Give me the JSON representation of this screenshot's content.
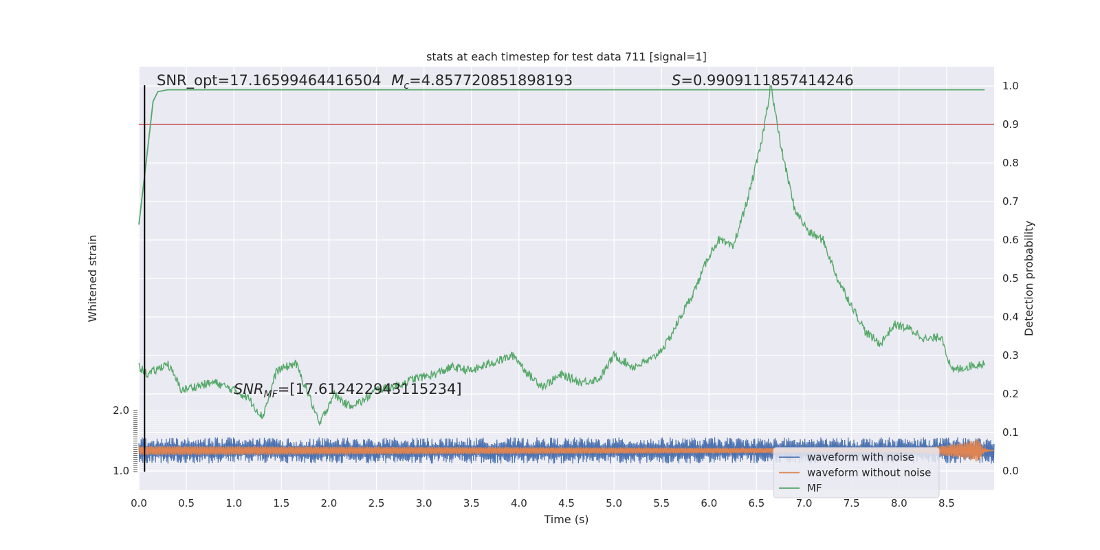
{
  "colors": {
    "background": "#eaeaf2",
    "grid": "#ffffff",
    "waveform_with_noise": "#4c72b0",
    "waveform_without_noise": "#dd8452",
    "mf": "#55a868",
    "threshold_line": "#c44e52",
    "marker_line": "#000000"
  },
  "chart_data": {
    "type": "line",
    "title": "stats at each timestep for test data 711 [signal=1]",
    "xlabel": "Time (s)",
    "ylabel_left": "Whitened strain",
    "ylabel_right": "Detection probability",
    "xlim": [
      0.0,
      9.0
    ],
    "ylim_right": [
      -0.05,
      1.05
    ],
    "x_ticks": [
      "0.0",
      "0.5",
      "1.0",
      "1.5",
      "2.0",
      "2.5",
      "3.0",
      "3.5",
      "4.0",
      "4.5",
      "5.0",
      "5.5",
      "6.0",
      "6.5",
      "7.0",
      "7.5",
      "8.0",
      "8.5"
    ],
    "y_ticks_right": [
      "0.0",
      "0.1",
      "0.2",
      "0.3",
      "0.4",
      "0.5",
      "0.6",
      "0.7",
      "0.8",
      "0.9",
      "1.0"
    ],
    "strain_ticks_top": "2.0",
    "strain_ticks_bottom": "1.0",
    "threshold": 0.9,
    "marker_time": 0.06,
    "grid": true,
    "legend_position": "lower-right",
    "annotations": {
      "snr_opt": "SNR_opt=17.16599464416504",
      "mc_label": "M",
      "mc_sub": "c",
      "mc_value": "=4.857720851898193",
      "s_label": "S",
      "s_value": "=0.9909111857414246",
      "snr_mf_label": "SNR",
      "snr_mf_sub": "MF",
      "snr_mf_value": "=[17.612422943115234]"
    },
    "series": [
      {
        "name": "waveform with noise",
        "type": "noise-band",
        "center": 0.053,
        "amplitude": 0.034
      },
      {
        "name": "waveform without noise",
        "type": "chirp",
        "center": 0.053,
        "amplitude_start": 0.012,
        "amplitude_end": 0.026,
        "merger_time": 8.85
      },
      {
        "name": "Detection probability",
        "color": "#55a868",
        "x": [
          0.0,
          0.08,
          0.15,
          0.2,
          0.3,
          0.5,
          1.0,
          2.0,
          4.0,
          6.0,
          8.0,
          8.9
        ],
        "y": [
          0.64,
          0.81,
          0.96,
          0.985,
          0.99,
          0.99,
          0.99,
          0.99,
          0.99,
          0.99,
          0.99,
          0.99
        ]
      },
      {
        "name": "MF",
        "color": "#55a868",
        "x": [
          0.0,
          0.1,
          0.3,
          0.45,
          0.6,
          0.8,
          1.0,
          1.15,
          1.3,
          1.45,
          1.65,
          1.8,
          1.9,
          2.05,
          2.2,
          2.35,
          2.5,
          2.7,
          2.9,
          3.1,
          3.3,
          3.5,
          3.7,
          3.95,
          4.1,
          4.25,
          4.45,
          4.65,
          4.85,
          5.0,
          5.2,
          5.4,
          5.55,
          5.7,
          5.85,
          6.0,
          6.1,
          6.25,
          6.4,
          6.55,
          6.65,
          6.75,
          6.9,
          7.05,
          7.2,
          7.35,
          7.5,
          7.65,
          7.8,
          7.95,
          8.1,
          8.3,
          8.45,
          8.55,
          8.7,
          8.9
        ],
        "y": [
          0.27,
          0.25,
          0.28,
          0.21,
          0.22,
          0.23,
          0.21,
          0.19,
          0.14,
          0.26,
          0.28,
          0.19,
          0.12,
          0.2,
          0.17,
          0.18,
          0.21,
          0.22,
          0.24,
          0.25,
          0.27,
          0.26,
          0.28,
          0.3,
          0.25,
          0.22,
          0.25,
          0.23,
          0.24,
          0.3,
          0.27,
          0.29,
          0.33,
          0.4,
          0.47,
          0.56,
          0.6,
          0.58,
          0.7,
          0.85,
          1.0,
          0.85,
          0.68,
          0.62,
          0.6,
          0.5,
          0.43,
          0.36,
          0.33,
          0.38,
          0.37,
          0.34,
          0.35,
          0.26,
          0.27,
          0.28
        ]
      }
    ]
  }
}
